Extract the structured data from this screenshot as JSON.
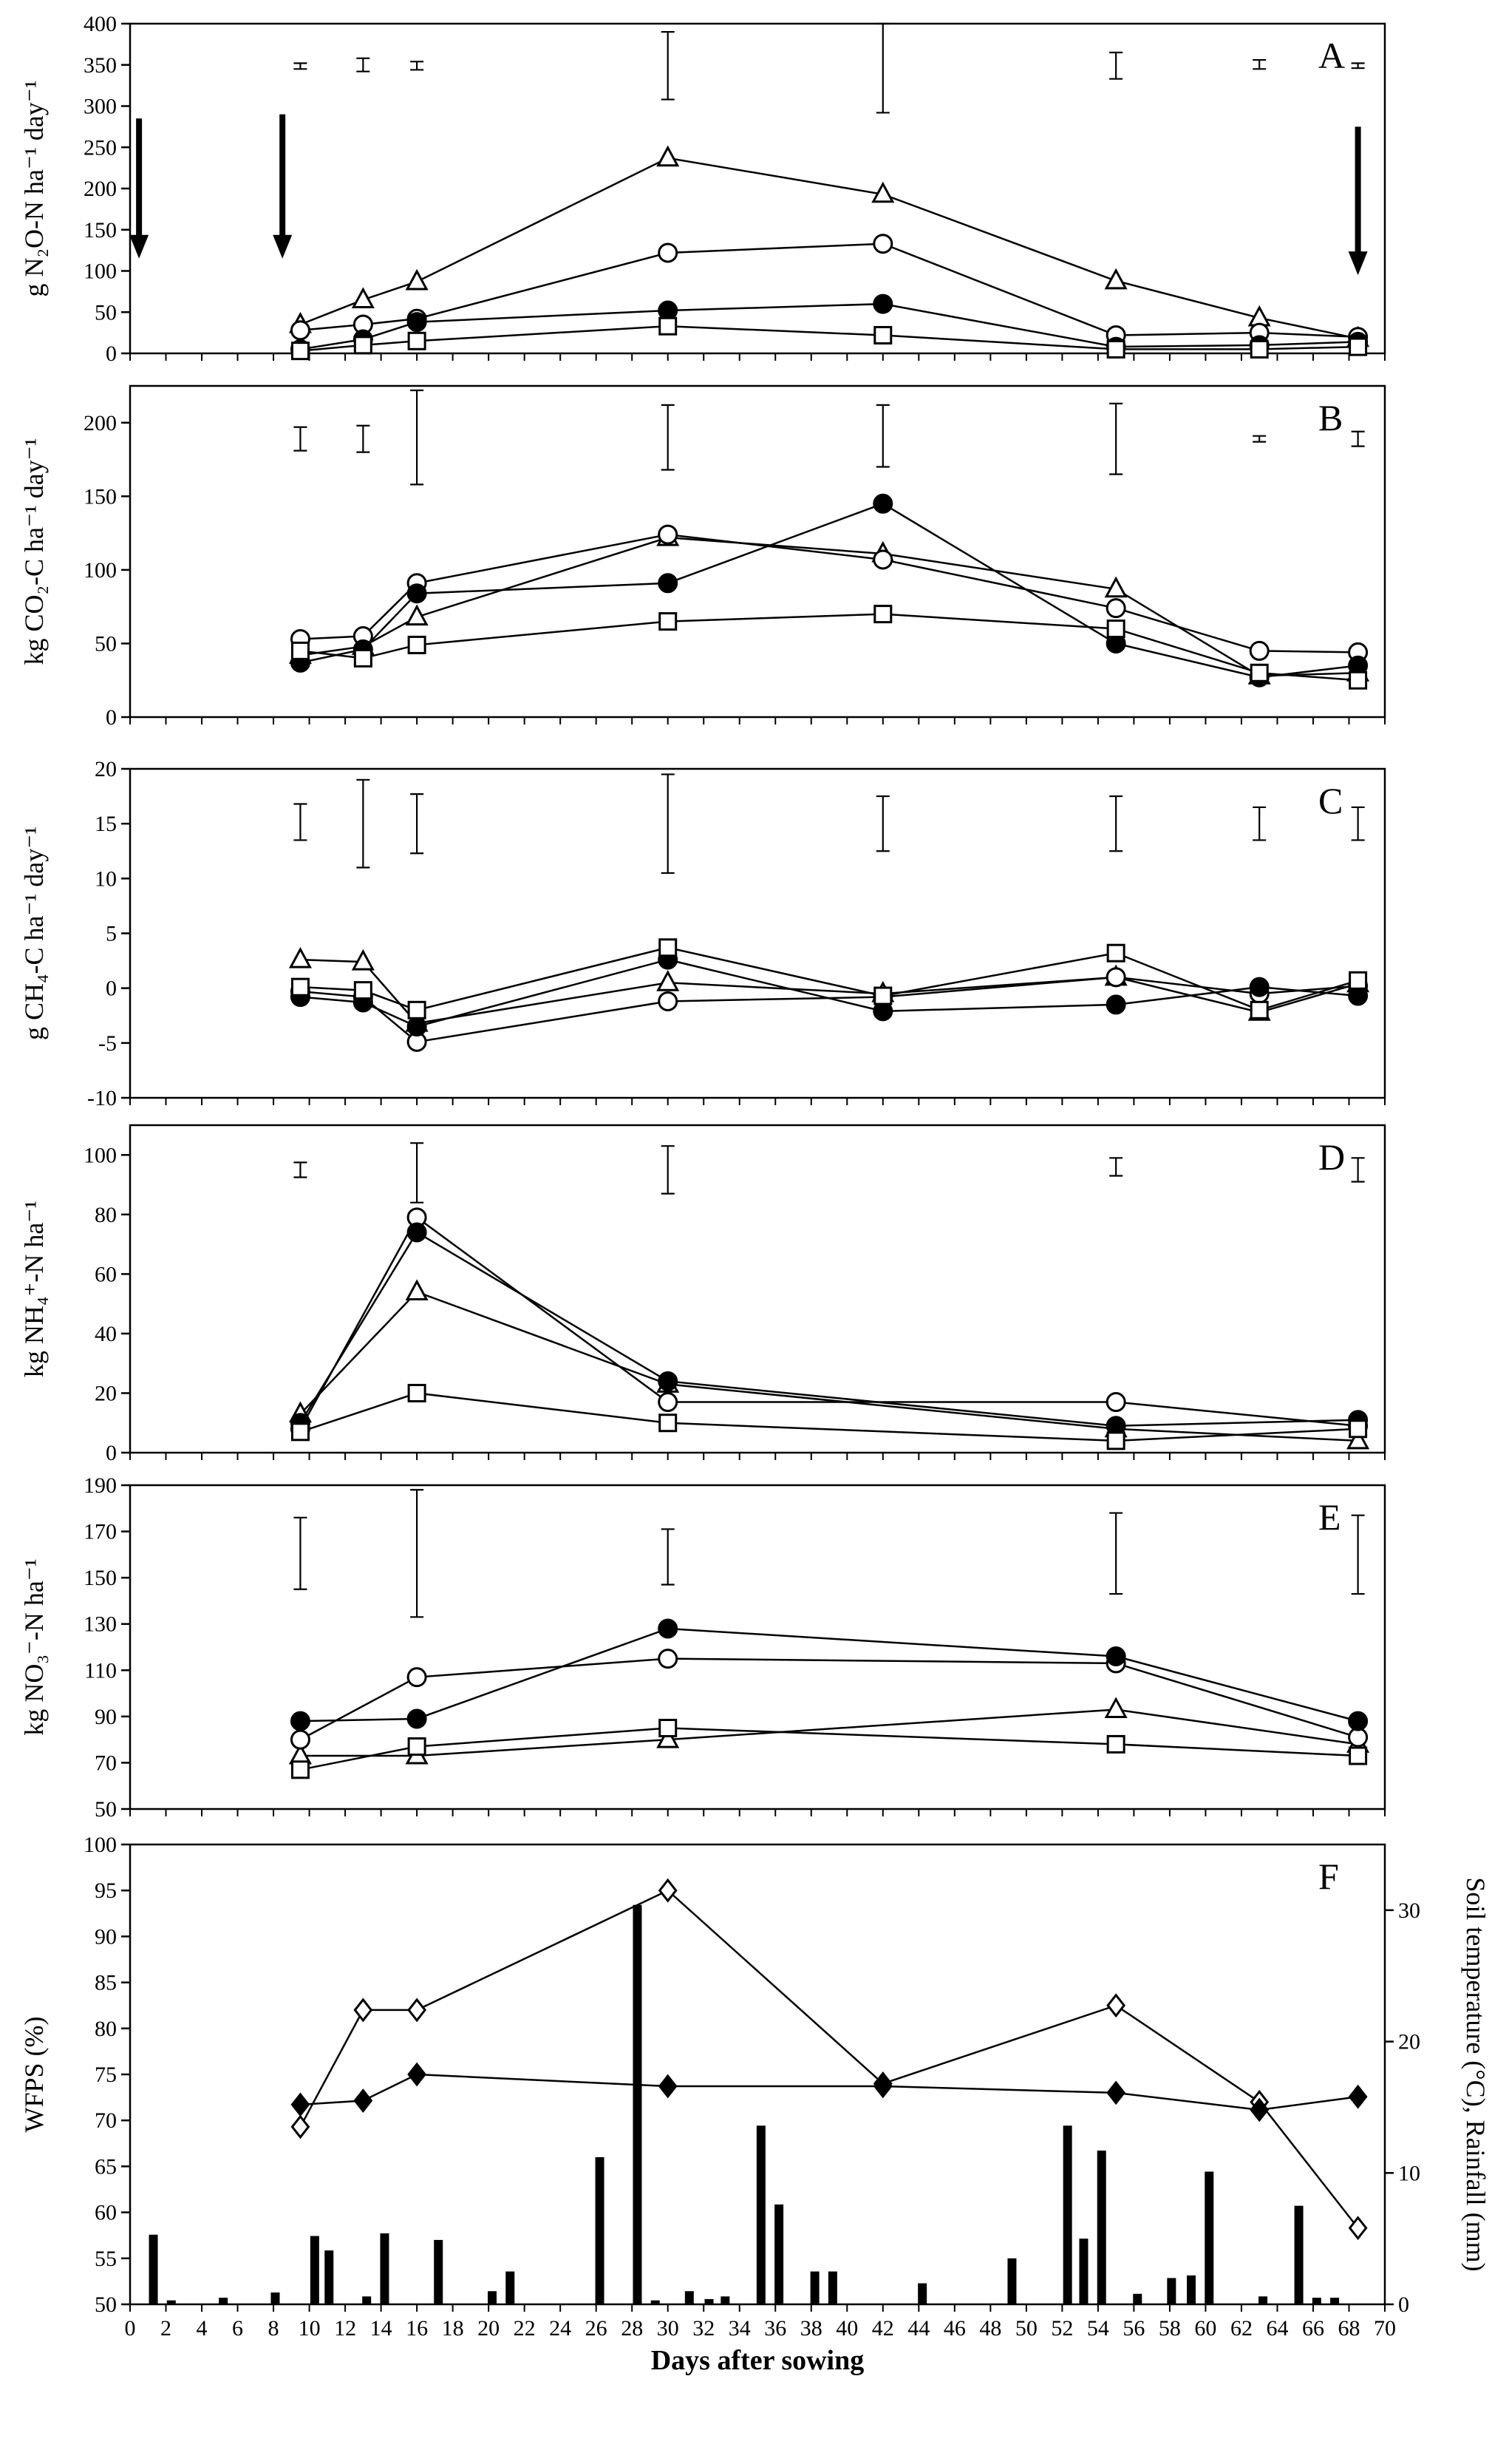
{
  "chart_data": [
    {
      "panel": "A",
      "type": "line",
      "ylabel": "g N₂O-N ha⁻¹ day⁻¹",
      "ylim": [
        0,
        400
      ],
      "yticks": [
        0,
        50,
        100,
        150,
        200,
        250,
        300,
        350,
        400
      ],
      "xlim": [
        0,
        70
      ],
      "x": [
        9.5,
        13,
        16,
        30,
        42,
        55,
        63,
        68.5
      ],
      "series": [
        {
          "name": "triangle",
          "marker": "triangle",
          "values": [
            35,
            65,
            87,
            237,
            193,
            88,
            43,
            18
          ]
        },
        {
          "name": "open-circle",
          "marker": "circle-open",
          "values": [
            28,
            35,
            42,
            122,
            133,
            22,
            25,
            20
          ]
        },
        {
          "name": "filled-circle",
          "marker": "circle-filled",
          "values": [
            5,
            17,
            38,
            52,
            60,
            8,
            10,
            14
          ]
        },
        {
          "name": "square",
          "marker": "square",
          "values": [
            3,
            10,
            15,
            33,
            22,
            5,
            5,
            8
          ]
        }
      ],
      "error_bars": [
        {
          "x": 9.5,
          "low": 345,
          "high": 352
        },
        {
          "x": 13,
          "low": 342,
          "high": 358
        },
        {
          "x": 16,
          "low": 344,
          "high": 354
        },
        {
          "x": 30,
          "low": 308,
          "high": 390
        },
        {
          "x": 42,
          "low": 292,
          "high": 400
        },
        {
          "x": 55,
          "low": 333,
          "high": 365
        },
        {
          "x": 63,
          "low": 345,
          "high": 356
        },
        {
          "x": 68.5,
          "low": 346,
          "high": 352
        }
      ],
      "arrows": [
        {
          "x": 0.5,
          "from": 285,
          "to": 115
        },
        {
          "x": 8.5,
          "from": 290,
          "to": 115
        },
        {
          "x": 68.5,
          "from": 275,
          "to": 95
        }
      ]
    },
    {
      "panel": "B",
      "type": "line",
      "ylabel": "kg CO₂-C ha⁻¹ day⁻¹",
      "ylim": [
        0,
        225
      ],
      "yticks": [
        0,
        50,
        100,
        150,
        200
      ],
      "xlim": [
        0,
        70
      ],
      "x": [
        9.5,
        13,
        16,
        30,
        42,
        55,
        63,
        68.5
      ],
      "series": [
        {
          "name": "triangle",
          "marker": "triangle",
          "values": [
            42,
            48,
            68,
            122,
            111,
            87,
            28,
            30
          ]
        },
        {
          "name": "open-circle",
          "marker": "circle-open",
          "values": [
            53,
            55,
            91,
            124,
            107,
            74,
            45,
            44
          ]
        },
        {
          "name": "filled-circle",
          "marker": "circle-filled",
          "values": [
            37,
            46,
            84,
            91,
            145,
            50,
            27,
            35
          ]
        },
        {
          "name": "square",
          "marker": "square",
          "values": [
            45,
            40,
            49,
            65,
            70,
            60,
            30,
            25
          ]
        }
      ],
      "error_bars": [
        {
          "x": 9.5,
          "low": 181,
          "high": 197
        },
        {
          "x": 13,
          "low": 180,
          "high": 198
        },
        {
          "x": 16,
          "low": 158,
          "high": 222
        },
        {
          "x": 30,
          "low": 168,
          "high": 212
        },
        {
          "x": 42,
          "low": 170,
          "high": 212
        },
        {
          "x": 55,
          "low": 165,
          "high": 213
        },
        {
          "x": 63,
          "low": 187,
          "high": 191
        },
        {
          "x": 68.5,
          "low": 184,
          "high": 194
        }
      ]
    },
    {
      "panel": "C",
      "type": "line",
      "ylabel": "g CH₄-C ha⁻¹ day⁻¹",
      "ylim": [
        -10,
        20
      ],
      "yticks": [
        -10,
        -5,
        0,
        5,
        10,
        15,
        20
      ],
      "xlim": [
        0,
        70
      ],
      "x": [
        9.5,
        13,
        16,
        30,
        42,
        55,
        63,
        68.5
      ],
      "series": [
        {
          "name": "triangle",
          "marker": "triangle",
          "values": [
            2.6,
            2.4,
            -3.2,
            0.5,
            -0.5,
            1.0,
            -2.2,
            0.4
          ]
        },
        {
          "name": "open-circle",
          "marker": "circle-open",
          "values": [
            -0.3,
            -0.8,
            -4.9,
            -1.2,
            -0.8,
            1.0,
            -0.5,
            0.2
          ]
        },
        {
          "name": "filled-circle",
          "marker": "circle-filled",
          "values": [
            -0.8,
            -1.3,
            -3.5,
            2.6,
            -2.1,
            -1.5,
            0.1,
            -0.7
          ]
        },
        {
          "name": "square",
          "marker": "square",
          "values": [
            0.1,
            -0.2,
            -2.0,
            3.7,
            -0.7,
            3.2,
            -2.0,
            0.7
          ]
        }
      ],
      "error_bars": [
        {
          "x": 9.5,
          "low": 13.5,
          "high": 16.8
        },
        {
          "x": 13,
          "low": 11,
          "high": 19
        },
        {
          "x": 16,
          "low": 12.3,
          "high": 17.7
        },
        {
          "x": 30,
          "low": 10.5,
          "high": 19.5
        },
        {
          "x": 42,
          "low": 12.5,
          "high": 17.5
        },
        {
          "x": 55,
          "low": 12.5,
          "high": 17.5
        },
        {
          "x": 63,
          "low": 13.5,
          "high": 16.5
        },
        {
          "x": 68.5,
          "low": 13.5,
          "high": 16.5
        }
      ]
    },
    {
      "panel": "D",
      "type": "line",
      "ylabel": "kg NH₄⁺-N ha⁻¹",
      "ylim": [
        0,
        110
      ],
      "yticks": [
        0,
        20,
        40,
        60,
        80,
        100
      ],
      "xlim": [
        0,
        70
      ],
      "x": [
        9.5,
        16,
        30,
        55,
        68.5
      ],
      "series": [
        {
          "name": "triangle",
          "marker": "triangle",
          "values": [
            13,
            54,
            23,
            8,
            4
          ]
        },
        {
          "name": "open-circle",
          "marker": "circle-open",
          "values": [
            8,
            79,
            17,
            17,
            9
          ]
        },
        {
          "name": "filled-circle",
          "marker": "circle-filled",
          "values": [
            10,
            74,
            24,
            9,
            11
          ]
        },
        {
          "name": "square",
          "marker": "square",
          "values": [
            7,
            20,
            10,
            4,
            8
          ]
        }
      ],
      "error_bars": [
        {
          "x": 9.5,
          "low": 92.5,
          "high": 97.5
        },
        {
          "x": 16,
          "low": 84,
          "high": 104
        },
        {
          "x": 30,
          "low": 87,
          "high": 103
        },
        {
          "x": 55,
          "low": 93,
          "high": 99
        },
        {
          "x": 68.5,
          "low": 91,
          "high": 99
        }
      ]
    },
    {
      "panel": "E",
      "type": "line",
      "ylabel": "kg NO₃⁻-N ha⁻¹",
      "ylim": [
        50,
        190
      ],
      "yticks": [
        50,
        70,
        90,
        110,
        130,
        150,
        170,
        190
      ],
      "xlim": [
        0,
        70
      ],
      "x": [
        9.5,
        16,
        30,
        55,
        68.5
      ],
      "series": [
        {
          "name": "triangle",
          "marker": "triangle",
          "values": [
            73,
            73,
            80,
            93,
            78
          ]
        },
        {
          "name": "open-circle",
          "marker": "circle-open",
          "values": [
            80,
            107,
            115,
            113,
            81
          ]
        },
        {
          "name": "filled-circle",
          "marker": "circle-filled",
          "values": [
            88,
            89,
            128,
            116,
            88
          ]
        },
        {
          "name": "square",
          "marker": "square",
          "values": [
            67,
            77,
            85,
            78,
            73
          ]
        }
      ],
      "error_bars": [
        {
          "x": 9.5,
          "low": 145,
          "high": 176
        },
        {
          "x": 16,
          "low": 133,
          "high": 188
        },
        {
          "x": 30,
          "low": 147,
          "high": 171
        },
        {
          "x": 55,
          "low": 143,
          "high": 178
        },
        {
          "x": 68.5,
          "low": 143,
          "high": 177
        }
      ]
    },
    {
      "panel": "F",
      "type": "line",
      "ylabel": "WFPS (%)",
      "ylabel_right": "Soil temperature (°C), Rainfall (mm)",
      "xlabel": "Days after sowing",
      "ylim": [
        50,
        100
      ],
      "yticks": [
        50,
        55,
        60,
        65,
        70,
        75,
        80,
        85,
        90,
        95,
        100
      ],
      "y2lim": [
        0,
        35
      ],
      "y2ticks": [
        0,
        10,
        20,
        30
      ],
      "xlim": [
        0,
        70
      ],
      "xticks": [
        0,
        2,
        4,
        6,
        8,
        10,
        12,
        14,
        16,
        18,
        20,
        22,
        24,
        26,
        28,
        30,
        32,
        34,
        36,
        38,
        40,
        42,
        44,
        46,
        48,
        50,
        52,
        54,
        56,
        58,
        60,
        62,
        64,
        66,
        68,
        70
      ],
      "series": [
        {
          "name": "WFPS",
          "marker": "diamond-open",
          "axis": "left",
          "x": [
            9.5,
            13,
            16,
            30,
            42,
            55,
            63,
            68.5
          ],
          "values": [
            69.3,
            82,
            82,
            95,
            74,
            82.5,
            72,
            58.3
          ]
        },
        {
          "name": "Soil temperature",
          "marker": "diamond-filled",
          "axis": "right",
          "x": [
            9.5,
            13,
            16,
            30,
            42,
            55,
            63,
            68.5
          ],
          "values": [
            15.2,
            15.5,
            17.5,
            16.6,
            16.6,
            16.1,
            14.8,
            15.8
          ]
        }
      ],
      "rainfall_bars": {
        "axis": "right",
        "x": [
          1.3,
          2.3,
          5.2,
          8.1,
          10.3,
          11.1,
          13.2,
          14.2,
          17.2,
          20.2,
          21.2,
          26.2,
          28.3,
          29.3,
          31.2,
          32.3,
          33.2,
          35.2,
          36.2,
          38.2,
          39.2,
          44.2,
          49.2,
          52.3,
          53.2,
          54.2,
          56.2,
          58.1,
          59.2,
          60.2,
          63.2,
          65.2,
          66.2,
          67.2
        ],
        "values": [
          5.3,
          0.3,
          0.5,
          0.9,
          5.2,
          4.1,
          0.6,
          5.4,
          4.9,
          1.0,
          2.5,
          11.2,
          30.4,
          0.3,
          1.0,
          0.4,
          0.6,
          13.6,
          7.6,
          2.5,
          2.5,
          1.6,
          3.5,
          13.6,
          5.0,
          11.7,
          0.8,
          2.0,
          2.2,
          10.1,
          0.6,
          7.5,
          0.5,
          0.5
        ]
      }
    }
  ]
}
